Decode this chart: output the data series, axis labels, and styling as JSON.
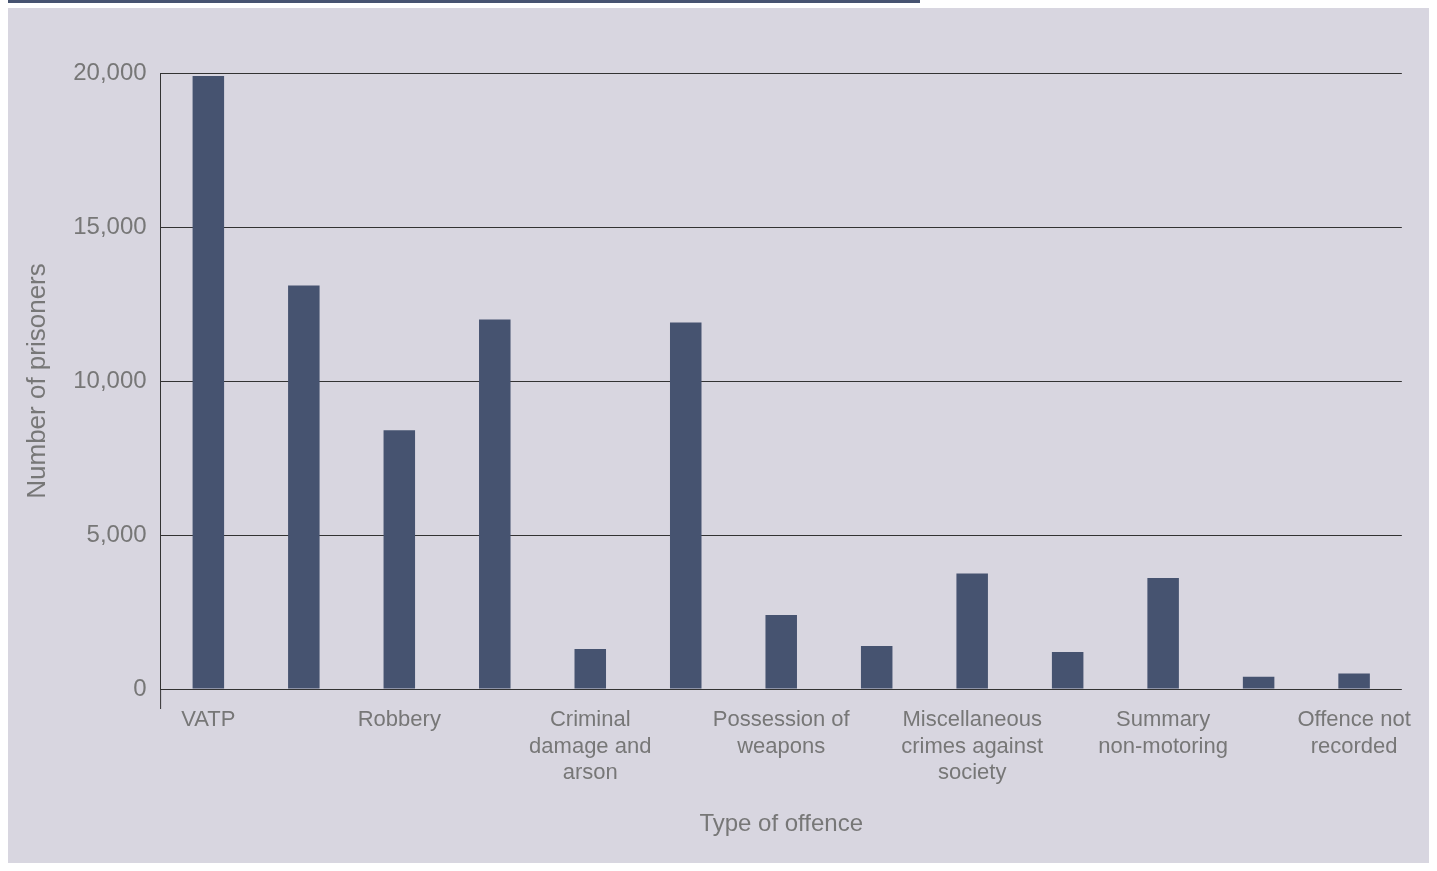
{
  "chart_data": {
    "type": "bar",
    "xlabel": "Type of offence",
    "ylabel": "Number of prisoners",
    "categories": [
      "VATP",
      null,
      "Robbery",
      null,
      "Criminal damage and arson",
      null,
      "Possession of weapons",
      null,
      "Miscellaneous crimes against society",
      null,
      "Summary non-motoring",
      null,
      "Offence not recorded"
    ],
    "values": [
      19900,
      13100,
      8400,
      12000,
      1300,
      11900,
      2400,
      1400,
      3750,
      1200,
      3600,
      400,
      500
    ],
    "color": "#465370",
    "ylim": [
      0,
      20000
    ],
    "yticks": [
      {
        "value": 0,
        "label": "0"
      },
      {
        "value": 5000,
        "label": "5,000"
      },
      {
        "value": 10000,
        "label": "10,000"
      },
      {
        "value": 15000,
        "label": "15,000"
      },
      {
        "value": 20000,
        "label": "20,000"
      }
    ],
    "grid": "y"
  }
}
